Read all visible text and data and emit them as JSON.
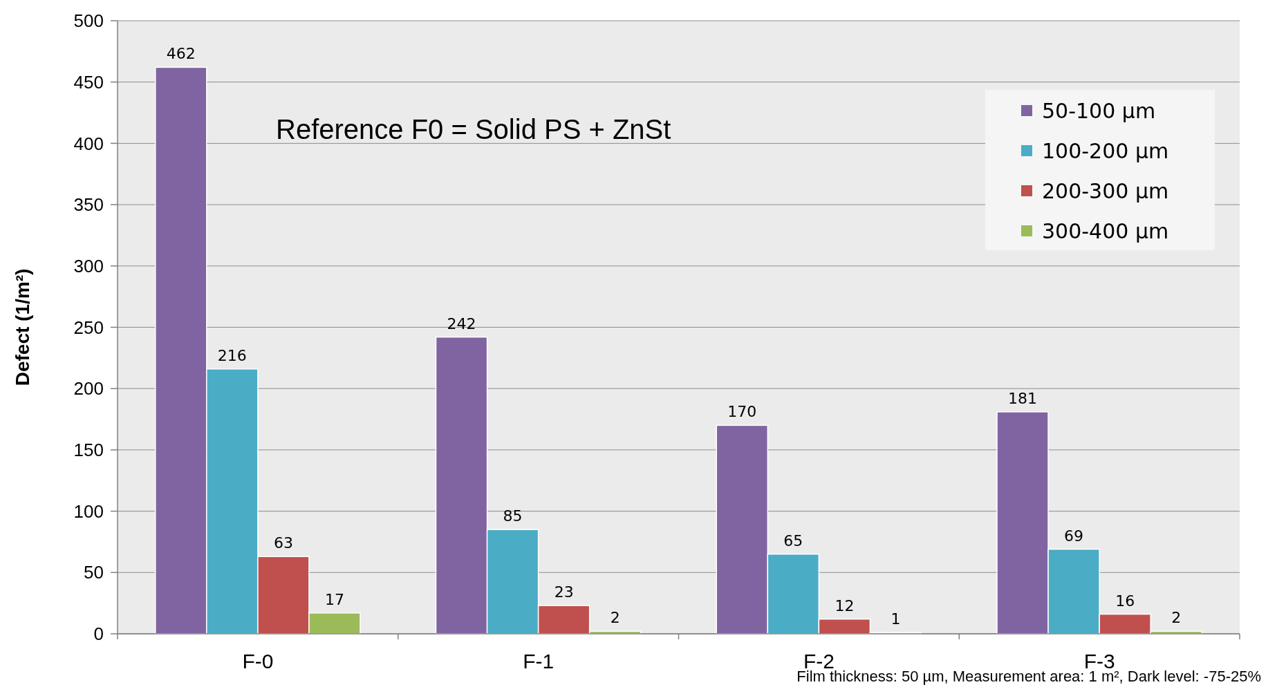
{
  "chart_data": {
    "type": "bar",
    "ylabel": "Defect (1/m²)",
    "categories": [
      "F-0",
      "F-1",
      "F-2",
      "F-3"
    ],
    "series": [
      {
        "name": "50-100 µm",
        "color": "#8064a2",
        "values": [
          462,
          242,
          170,
          181
        ]
      },
      {
        "name": "100-200 µm",
        "color": "#4bacc6",
        "values": [
          216,
          85,
          65,
          69
        ]
      },
      {
        "name": "200-300 µm",
        "color": "#c0504d",
        "values": [
          63,
          23,
          12,
          16
        ]
      },
      {
        "name": "300-400 µm",
        "color": "#9bbb59",
        "values": [
          17,
          2,
          1,
          2
        ]
      }
    ],
    "ylim": [
      0,
      500
    ],
    "yticks": [
      0,
      50,
      100,
      150,
      200,
      250,
      300,
      350,
      400,
      450,
      500
    ],
    "grid": "y",
    "legend": "top right",
    "data_labels": true,
    "annotations": [
      "Reference F0 = Solid PS + ZnSt",
      "Film thickness: 50 µm, Measurement area: 1 m², Dark level: -75-25%"
    ]
  }
}
